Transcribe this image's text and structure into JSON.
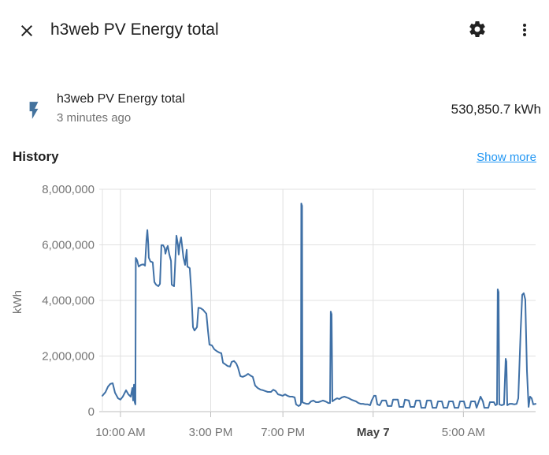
{
  "header": {
    "title": "h3web PV Energy total",
    "icons": {
      "close": "close-x",
      "settings": "gear",
      "overflow": "three-dots-vertical"
    }
  },
  "entity": {
    "icon": "lightning-bolt",
    "icon_color": "#44739e",
    "name": "h3web PV Energy total",
    "last_changed": "3 minutes ago",
    "state": "530,850.7 kWh"
  },
  "history_section": {
    "heading": "History",
    "show_more_label": "Show more",
    "show_more_color": "#2196f3"
  },
  "chart_data": {
    "type": "line",
    "title": "",
    "xlabel": "",
    "ylabel": "kWh",
    "ylim": [
      0,
      8000000
    ],
    "yticks": [
      {
        "value": 0,
        "label": "0"
      },
      {
        "value": 2000000,
        "label": "2,000,000"
      },
      {
        "value": 4000000,
        "label": "4,000,000"
      },
      {
        "value": 6000000,
        "label": "6,000,000"
      },
      {
        "value": 8000000,
        "label": "8,000,000"
      }
    ],
    "x_axis": {
      "unit": "hours_since_midnight_may_6",
      "range": [
        9,
        33
      ]
    },
    "xticks": [
      {
        "hour": 10,
        "label": "10:00 AM",
        "bold": false
      },
      {
        "hour": 15,
        "label": "3:00 PM",
        "bold": false
      },
      {
        "hour": 19,
        "label": "7:00 PM",
        "bold": false
      },
      {
        "hour": 24,
        "label": "May 7",
        "bold": true
      },
      {
        "hour": 29,
        "label": "5:00 AM",
        "bold": false
      }
    ],
    "grid": true,
    "legend": "none",
    "line_color": "#3f70a6",
    "grid_color": "#e0e0e0",
    "axis_line_color": "#bdbdbd",
    "tick_label_color": "#757575",
    "bold_tick_label_color": "#424242",
    "series": [
      {
        "name": "h3web PV Energy total",
        "unit": "kWh",
        "points": [
          [
            9.0,
            570000
          ],
          [
            9.17,
            700000
          ],
          [
            9.31,
            900000
          ],
          [
            9.44,
            1000000
          ],
          [
            9.57,
            1020000
          ],
          [
            9.7,
            680000
          ],
          [
            9.87,
            480000
          ],
          [
            10.0,
            430000
          ],
          [
            10.13,
            540000
          ],
          [
            10.31,
            770000
          ],
          [
            10.44,
            620000
          ],
          [
            10.57,
            540000
          ],
          [
            10.66,
            850000
          ],
          [
            10.7,
            400000
          ],
          [
            10.75,
            970000
          ],
          [
            10.79,
            340000
          ],
          [
            10.83,
            260000
          ],
          [
            10.85,
            5530000
          ],
          [
            10.92,
            5450000
          ],
          [
            11.01,
            5220000
          ],
          [
            11.14,
            5280000
          ],
          [
            11.27,
            5300000
          ],
          [
            11.36,
            5250000
          ],
          [
            11.44,
            6160000
          ],
          [
            11.49,
            6530000
          ],
          [
            11.54,
            6050000
          ],
          [
            11.57,
            5540000
          ],
          [
            11.66,
            5400000
          ],
          [
            11.79,
            5370000
          ],
          [
            11.88,
            4660000
          ],
          [
            11.97,
            4570000
          ],
          [
            12.1,
            4510000
          ],
          [
            12.19,
            4600000
          ],
          [
            12.27,
            5990000
          ],
          [
            12.36,
            5990000
          ],
          [
            12.45,
            5880000
          ],
          [
            12.49,
            5680000
          ],
          [
            12.58,
            5900000
          ],
          [
            12.62,
            5960000
          ],
          [
            12.71,
            5650000
          ],
          [
            12.8,
            5420000
          ],
          [
            12.84,
            4570000
          ],
          [
            12.97,
            4510000
          ],
          [
            13.01,
            5030000
          ],
          [
            13.1,
            6330000
          ],
          [
            13.19,
            5990000
          ],
          [
            13.23,
            5650000
          ],
          [
            13.28,
            6020000
          ],
          [
            13.36,
            6270000
          ],
          [
            13.49,
            5540000
          ],
          [
            13.58,
            5280000
          ],
          [
            13.67,
            5820000
          ],
          [
            13.71,
            5220000
          ],
          [
            13.84,
            5160000
          ],
          [
            13.93,
            4260000
          ],
          [
            14.02,
            3040000
          ],
          [
            14.1,
            2920000
          ],
          [
            14.24,
            3040000
          ],
          [
            14.32,
            3740000
          ],
          [
            14.45,
            3720000
          ],
          [
            14.58,
            3660000
          ],
          [
            14.76,
            3520000
          ],
          [
            14.85,
            2890000
          ],
          [
            14.93,
            2410000
          ],
          [
            15.07,
            2380000
          ],
          [
            15.2,
            2240000
          ],
          [
            15.33,
            2180000
          ],
          [
            15.46,
            2130000
          ],
          [
            15.59,
            2100000
          ],
          [
            15.68,
            1760000
          ],
          [
            15.81,
            1700000
          ],
          [
            15.94,
            1640000
          ],
          [
            16.07,
            1620000
          ],
          [
            16.16,
            1790000
          ],
          [
            16.29,
            1820000
          ],
          [
            16.42,
            1730000
          ],
          [
            16.51,
            1590000
          ],
          [
            16.64,
            1280000
          ],
          [
            16.77,
            1250000
          ],
          [
            16.94,
            1300000
          ],
          [
            17.07,
            1360000
          ],
          [
            17.2,
            1300000
          ],
          [
            17.33,
            1250000
          ],
          [
            17.46,
            940000
          ],
          [
            17.6,
            850000
          ],
          [
            17.77,
            790000
          ],
          [
            17.9,
            770000
          ],
          [
            18.03,
            740000
          ],
          [
            18.16,
            710000
          ],
          [
            18.34,
            710000
          ],
          [
            18.47,
            790000
          ],
          [
            18.6,
            740000
          ],
          [
            18.73,
            620000
          ],
          [
            18.86,
            600000
          ],
          [
            18.99,
            570000
          ],
          [
            19.12,
            620000
          ],
          [
            19.25,
            570000
          ],
          [
            19.38,
            540000
          ],
          [
            19.52,
            540000
          ],
          [
            19.65,
            510000
          ],
          [
            19.73,
            260000
          ],
          [
            19.87,
            200000
          ],
          [
            19.95,
            230000
          ],
          [
            20.0,
            300000
          ],
          [
            20.02,
            7490000
          ],
          [
            20.06,
            7400000
          ],
          [
            20.08,
            340000
          ],
          [
            20.17,
            310000
          ],
          [
            20.3,
            280000
          ],
          [
            20.43,
            280000
          ],
          [
            20.56,
            370000
          ],
          [
            20.69,
            400000
          ],
          [
            20.83,
            340000
          ],
          [
            20.96,
            340000
          ],
          [
            21.09,
            370000
          ],
          [
            21.22,
            400000
          ],
          [
            21.35,
            370000
          ],
          [
            21.44,
            340000
          ],
          [
            21.52,
            310000
          ],
          [
            21.61,
            310000
          ],
          [
            21.65,
            3600000
          ],
          [
            21.7,
            3500000
          ],
          [
            21.74,
            370000
          ],
          [
            21.87,
            430000
          ],
          [
            22.0,
            480000
          ],
          [
            22.13,
            450000
          ],
          [
            22.26,
            510000
          ],
          [
            22.4,
            540000
          ],
          [
            22.53,
            510000
          ],
          [
            22.66,
            480000
          ],
          [
            22.79,
            430000
          ],
          [
            22.92,
            400000
          ],
          [
            23.05,
            370000
          ],
          [
            23.18,
            310000
          ],
          [
            23.31,
            280000
          ],
          [
            23.44,
            280000
          ],
          [
            23.57,
            260000
          ],
          [
            23.7,
            260000
          ],
          [
            23.83,
            230000
          ],
          [
            23.92,
            400000
          ],
          [
            24.05,
            570000
          ],
          [
            24.14,
            570000
          ],
          [
            24.23,
            260000
          ],
          [
            24.36,
            230000
          ],
          [
            24.49,
            400000
          ],
          [
            24.71,
            400000
          ],
          [
            24.8,
            200000
          ],
          [
            25.02,
            200000
          ],
          [
            25.1,
            430000
          ],
          [
            25.37,
            430000
          ],
          [
            25.45,
            170000
          ],
          [
            25.67,
            170000
          ],
          [
            25.76,
            430000
          ],
          [
            25.98,
            400000
          ],
          [
            26.06,
            170000
          ],
          [
            26.28,
            170000
          ],
          [
            26.37,
            400000
          ],
          [
            26.59,
            400000
          ],
          [
            26.67,
            140000
          ],
          [
            26.89,
            140000
          ],
          [
            26.98,
            400000
          ],
          [
            27.2,
            400000
          ],
          [
            27.29,
            140000
          ],
          [
            27.5,
            140000
          ],
          [
            27.59,
            370000
          ],
          [
            27.81,
            370000
          ],
          [
            27.9,
            140000
          ],
          [
            28.11,
            140000
          ],
          [
            28.2,
            370000
          ],
          [
            28.42,
            370000
          ],
          [
            28.51,
            140000
          ],
          [
            28.72,
            140000
          ],
          [
            28.81,
            370000
          ],
          [
            29.03,
            370000
          ],
          [
            29.12,
            140000
          ],
          [
            29.34,
            140000
          ],
          [
            29.42,
            370000
          ],
          [
            29.64,
            370000
          ],
          [
            29.73,
            140000
          ],
          [
            29.95,
            540000
          ],
          [
            30.08,
            370000
          ],
          [
            30.16,
            140000
          ],
          [
            30.38,
            140000
          ],
          [
            30.47,
            340000
          ],
          [
            30.69,
            340000
          ],
          [
            30.78,
            230000
          ],
          [
            30.86,
            260000
          ],
          [
            30.9,
            4400000
          ],
          [
            30.95,
            4300000
          ],
          [
            30.99,
            260000
          ],
          [
            31.12,
            230000
          ],
          [
            31.25,
            260000
          ],
          [
            31.34,
            1900000
          ],
          [
            31.38,
            1800000
          ],
          [
            31.43,
            230000
          ],
          [
            31.56,
            280000
          ],
          [
            31.69,
            280000
          ],
          [
            31.82,
            260000
          ],
          [
            31.95,
            280000
          ],
          [
            32.04,
            480000
          ],
          [
            32.17,
            2900000
          ],
          [
            32.26,
            4200000
          ],
          [
            32.34,
            4260000
          ],
          [
            32.43,
            4030000
          ],
          [
            32.52,
            1470000
          ],
          [
            32.61,
            170000
          ],
          [
            32.69,
            540000
          ],
          [
            32.78,
            480000
          ],
          [
            32.87,
            260000
          ],
          [
            33.0,
            280000
          ]
        ]
      }
    ]
  }
}
